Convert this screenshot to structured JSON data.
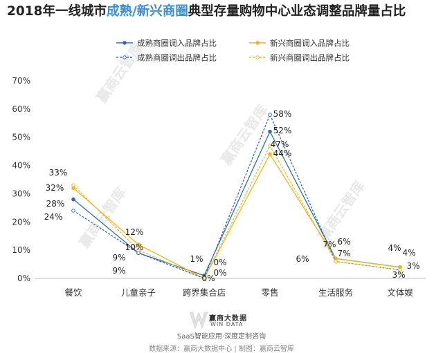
{
  "title": {
    "prefix": "2018年一线城市",
    "highlight": "成熟/新兴商圈",
    "suffix": "典型存量购物中心业态调整品牌量占比"
  },
  "chart_data": {
    "type": "line",
    "title": "2018年一线城市成熟/新兴商圈典型存量购物中心业态调整品牌量占比",
    "categories": [
      "餐饮",
      "儿童亲子",
      "跨界集合店",
      "零售",
      "生活服务",
      "文体娱"
    ],
    "ylim": [
      0,
      70
    ],
    "yticks": [
      "0%",
      "10%",
      "20%",
      "30%",
      "40%",
      "50%",
      "60%",
      "70%"
    ],
    "grid": false,
    "legend_position": "top",
    "series": [
      {
        "name": "成熟商圈调入品牌占比",
        "values": [
          28,
          9,
          1,
          52,
          7,
          4
        ],
        "labels": [
          "28%",
          "9%",
          "1%",
          "52%",
          "7%",
          "4%"
        ],
        "color": "#2e6eb0",
        "dashed": false
      },
      {
        "name": "新兴商圈调入品牌占比",
        "values": [
          32,
          12,
          0,
          44,
          7,
          4
        ],
        "labels": [
          "32%",
          "12%",
          "0%",
          "44%",
          "7%",
          "4%"
        ],
        "color": "#f2b51c",
        "dashed": false
      },
      {
        "name": "成熟商圈调出品牌占比",
        "values": [
          24,
          9,
          0,
          58,
          6,
          3
        ],
        "labels": [
          "24%",
          "9%",
          "0%",
          "58%",
          "6%",
          "3%"
        ],
        "color": "#2e6eb0",
        "dashed": true
      },
      {
        "name": "新兴商圈调出品牌占比",
        "values": [
          33,
          10,
          0,
          47,
          6,
          3
        ],
        "labels": [
          "33%",
          "10%",
          "0%",
          "47%",
          "6%",
          "3%"
        ],
        "color": "#f2b51c",
        "dashed": true
      }
    ]
  },
  "branding": {
    "logo_cn": "赢商大数据",
    "logo_en": "WIN DATA",
    "slogan": "SaaS智能应用·深度定制咨询",
    "source": "数据来源：赢商大数据中心 | 制图：赢商云智库",
    "watermark": "赢商云智库"
  }
}
